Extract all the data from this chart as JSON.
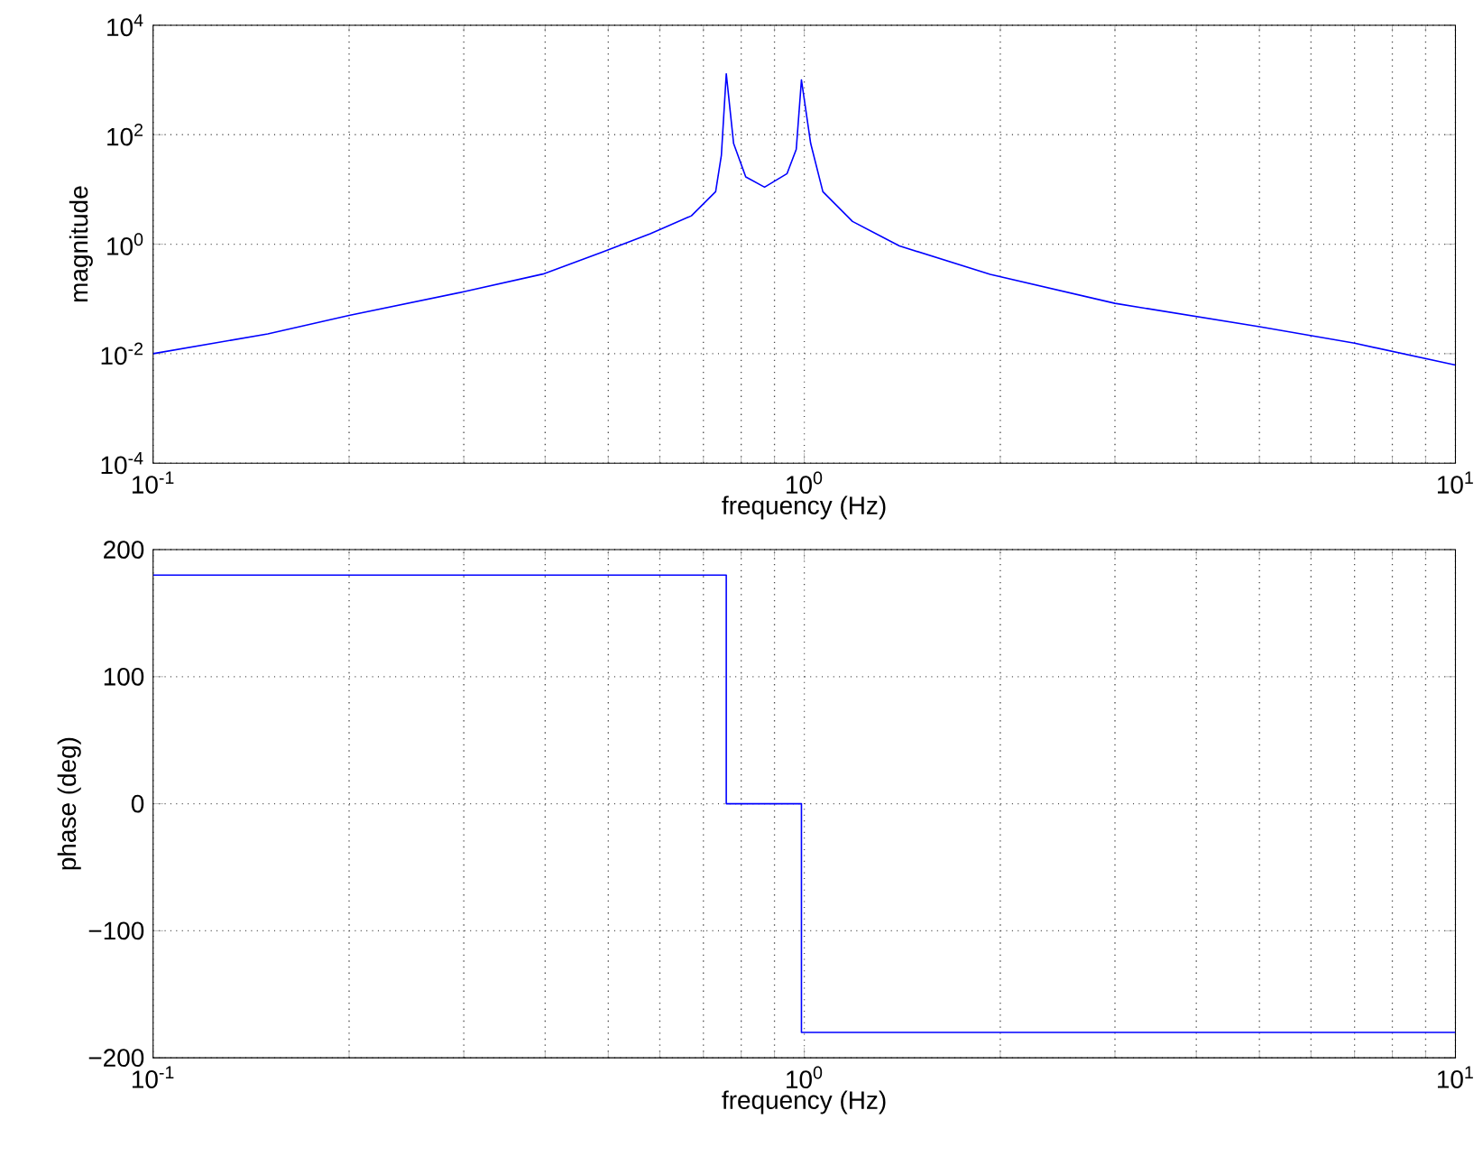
{
  "chart_data": [
    {
      "type": "line",
      "xlabel": "frequency (Hz)",
      "ylabel": "magnitude",
      "log": "xy",
      "grid": true,
      "xlim": [
        0.1,
        10
      ],
      "ylim": [
        0.0001,
        10000
      ],
      "xticks": [
        {
          "value": 0.1,
          "label": "10$^{-1}$"
        },
        {
          "value": 1,
          "label": "10$^{0}$"
        },
        {
          "value": 10,
          "label": "10$^{1}$"
        }
      ],
      "yticks": [
        {
          "value": 0.0001,
          "label": "10$^{-4}$"
        },
        {
          "value": 0.01,
          "label": "10$^{-2}$"
        },
        {
          "value": 1,
          "label": "10$^{0}$"
        },
        {
          "value": 100,
          "label": "10$^{2}$"
        },
        {
          "value": 10000,
          "label": "10$^{4}$"
        }
      ],
      "series": [
        {
          "color": "#0000ff",
          "x": [
            0.1,
            0.15,
            0.2,
            0.3,
            0.397,
            0.49,
            0.58,
            0.671,
            0.731,
            0.746,
            0.759,
            0.779,
            0.813,
            0.869,
            0.941,
            0.972,
            0.99,
            1.023,
            1.068,
            1.186,
            1.4,
            1.93,
            3,
            5,
            7,
            10
          ],
          "values": [
            0.01,
            0.023,
            0.05,
            0.135,
            0.285,
            0.72,
            1.55,
            3.3,
            9.1,
            42,
            1300,
            69,
            17,
            11,
            19.5,
            54,
            1000,
            69,
            9.1,
            2.6,
            0.93,
            0.28,
            0.083,
            0.031,
            0.0155,
            0.0062
          ]
        }
      ]
    },
    {
      "type": "line",
      "xlabel": "frequency (Hz)",
      "ylabel": "phase (deg)",
      "log": "x",
      "grid": true,
      "xlim": [
        0.1,
        10
      ],
      "ylim": [
        -200,
        200
      ],
      "xticks": [
        {
          "value": 0.1,
          "label": "10$^{-1}$"
        },
        {
          "value": 1,
          "label": "10$^{0}$"
        },
        {
          "value": 10,
          "label": "10$^{1}$"
        }
      ],
      "yticks": [
        {
          "value": -200,
          "label": "−200"
        },
        {
          "value": -100,
          "label": "−100"
        },
        0,
        100,
        200
      ],
      "series": [
        {
          "color": "#0000ff",
          "x": [
            0.1,
            0.759,
            0.759,
            0.99,
            0.99,
            10
          ],
          "values": [
            180,
            180,
            0,
            0,
            -180,
            -180
          ]
        }
      ]
    }
  ]
}
